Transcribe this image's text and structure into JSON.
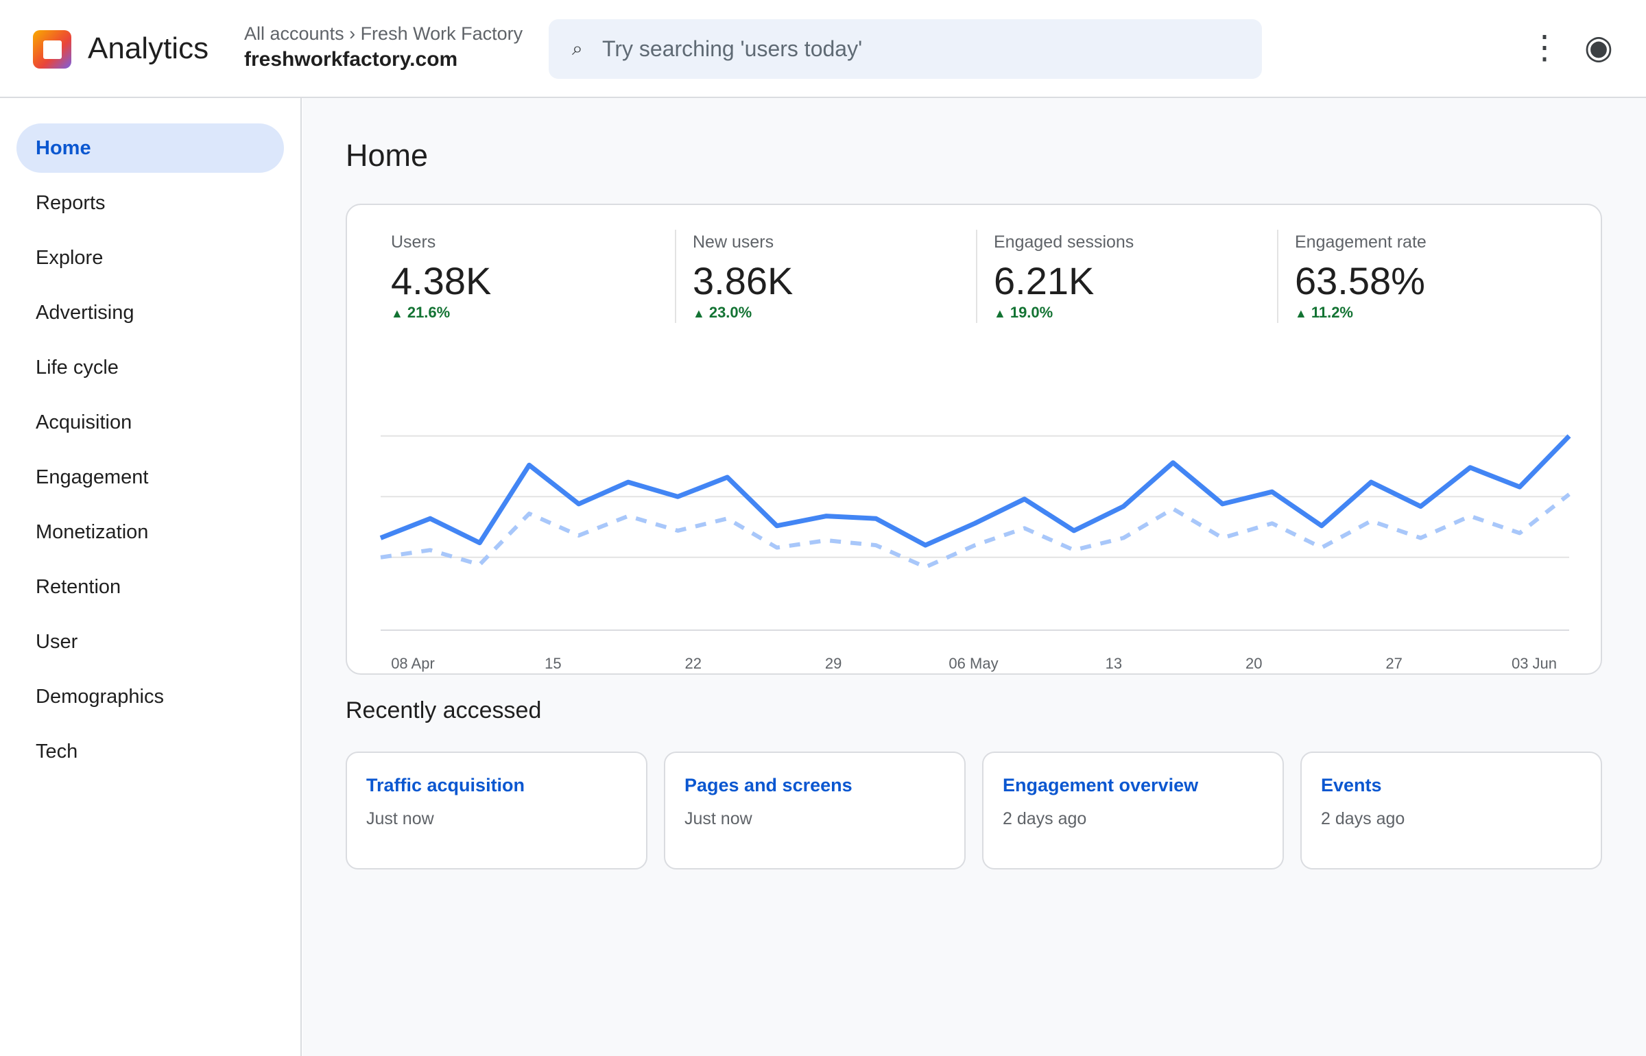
{
  "app": {
    "title": "Analytics"
  },
  "header": {
    "breadcrumb": "All accounts › Fresh Work Factory",
    "property": "freshworkfactory.com",
    "search": {
      "placeholder": "Try searching 'users today'",
      "icon": "search-icon"
    },
    "more_icon": "⋮",
    "account_icon": "◉"
  },
  "sidebar": {
    "items": [
      {
        "label": "Home",
        "active": true
      },
      {
        "label": "Reports"
      },
      {
        "label": "Explore"
      },
      {
        "label": "Advertising"
      },
      {
        "label": "Life cycle"
      },
      {
        "label": "Acquisition"
      },
      {
        "label": "Engagement"
      },
      {
        "label": "Monetization"
      },
      {
        "label": "Retention"
      },
      {
        "label": "User"
      },
      {
        "label": "Demographics"
      },
      {
        "label": "Tech"
      }
    ]
  },
  "main": {
    "page_title": "Home",
    "metrics": [
      {
        "label": "Users",
        "value": "4.38K",
        "delta": "21.6%"
      },
      {
        "label": "New users",
        "value": "3.86K",
        "delta": "23.0%"
      },
      {
        "label": "Engaged sessions",
        "value": "6.21K",
        "delta": "19.0%"
      },
      {
        "label": "Engagement rate",
        "value": "63.58%",
        "delta": "11.2%"
      }
    ],
    "recent_title": "Recently accessed",
    "recent": [
      {
        "title": "Traffic acquisition",
        "time": "Just now"
      },
      {
        "title": "Pages and screens",
        "time": "Just now"
      },
      {
        "title": "Engagement overview",
        "time": "2 days ago"
      },
      {
        "title": "Events",
        "time": "2 days ago"
      }
    ]
  },
  "colors": {
    "accent": "#0b57d0",
    "primary_line": "#4285f4",
    "comparison_line": "#a8c7fa",
    "positive": "#137333"
  },
  "chart_data": {
    "type": "line",
    "x_tick_labels": [
      "08 Apr",
      "15",
      "22",
      "29",
      "06 May",
      "13",
      "20",
      "27",
      "03 Jun"
    ],
    "ylim": [
      0,
      100
    ],
    "grid": true,
    "series": [
      {
        "style": "solid",
        "values": [
          38,
          46,
          36,
          68,
          52,
          61,
          55,
          63,
          43,
          47,
          46,
          35,
          44,
          54,
          41,
          51,
          69,
          52,
          57,
          43,
          61,
          51,
          67,
          59,
          80
        ]
      },
      {
        "style": "dashed",
        "values": [
          30,
          33,
          27,
          48,
          39,
          47,
          41,
          46,
          34,
          37,
          35,
          26,
          35,
          42,
          33,
          38,
          50,
          38,
          44,
          34,
          45,
          38,
          47,
          40,
          56
        ]
      }
    ]
  }
}
